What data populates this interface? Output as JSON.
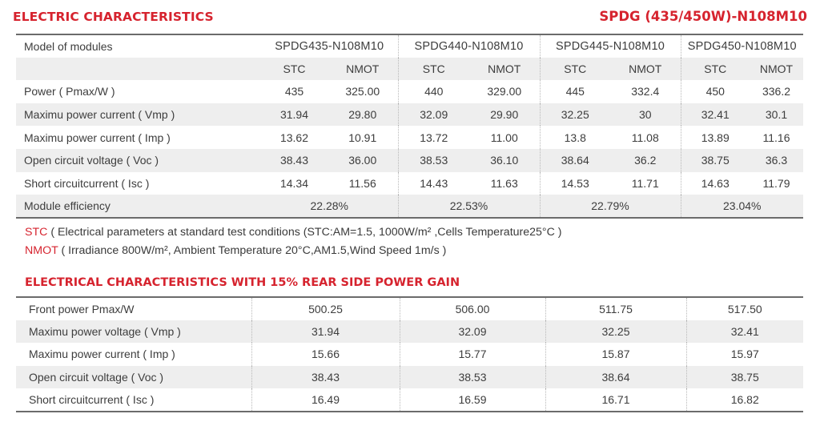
{
  "header": {
    "title": "ELECTRIC CHARACTERISTICS",
    "model_range": "SPDG (435/450W)-N108M10"
  },
  "table1": {
    "model_label": "Model of modules",
    "models": [
      "SPDG435-N108M10",
      "SPDG440-N108M10",
      "SPDG445-N108M10",
      "SPDG450-N108M10"
    ],
    "condition_labels": [
      "STC",
      "NMOT"
    ],
    "rows": [
      {
        "label": "Power ( Pmax/W )",
        "values": [
          "435",
          "325.00",
          "440",
          "329.00",
          "445",
          "332.4",
          "450",
          "336.2"
        ]
      },
      {
        "label": "Maximu power current ( Vmp )",
        "values": [
          "31.94",
          "29.80",
          "32.09",
          "29.90",
          "32.25",
          "30",
          "32.41",
          "30.1"
        ]
      },
      {
        "label": "Maximu power current ( Imp )",
        "values": [
          "13.62",
          "10.91",
          "13.72",
          "11.00",
          "13.8",
          "11.08",
          "13.89",
          "11.16"
        ]
      },
      {
        "label": "Open circuit voltage ( Voc )",
        "values": [
          "38.43",
          "36.00",
          "38.53",
          "36.10",
          "38.64",
          "36.2",
          "38.75",
          "36.3"
        ]
      },
      {
        "label": "Short circuitcurrent ( Isc )",
        "values": [
          "14.34",
          "11.56",
          "14.43",
          "11.63",
          "14.53",
          "11.71",
          "14.63",
          "11.79"
        ]
      }
    ],
    "efficiency_label": "Module efficiency",
    "efficiency_values": [
      "22.28%",
      "22.53%",
      "22.79%",
      "23.04%"
    ]
  },
  "notes": {
    "stc_tag": "STC",
    "stc_text": " ( Electrical parameters at standard test conditions (STC:AM=1.5, 1000W/m² ,Cells Temperature25°C )",
    "nmot_tag": "NMOT",
    "nmot_text": " ( Irradiance 800W/m², Ambient Temperature 20°C,AM1.5,Wind Speed 1m/s )"
  },
  "table2": {
    "title": "ELECTRICAL CHARACTERISTICS WITH 15% REAR SIDE POWER GAIN",
    "rows": [
      {
        "label": "Front power Pmax/W",
        "values": [
          "500.25",
          "506.00",
          "511.75",
          "517.50"
        ]
      },
      {
        "label": "Maximu power voltage ( Vmp )",
        "values": [
          "31.94",
          "32.09",
          "32.25",
          "32.41"
        ]
      },
      {
        "label": "Maximu power current ( Imp )",
        "values": [
          "15.66",
          "15.77",
          "15.87",
          "15.97"
        ]
      },
      {
        "label": "Open circuit voltage ( Voc )",
        "values": [
          "38.43",
          "38.53",
          "38.64",
          "38.75"
        ]
      },
      {
        "label": "Short circuitcurrent ( Isc )",
        "values": [
          "16.49",
          "16.59",
          "16.71",
          "16.82"
        ]
      }
    ]
  }
}
